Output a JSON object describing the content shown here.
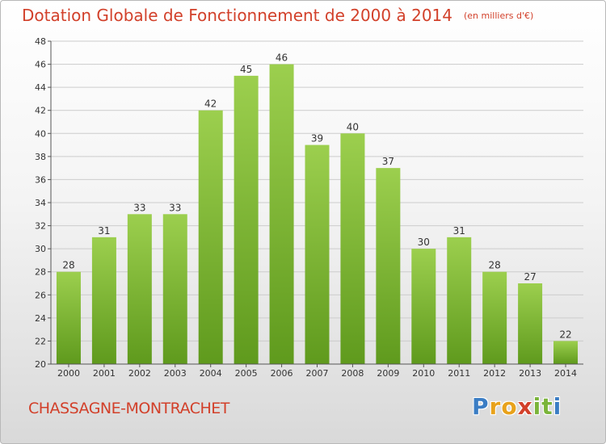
{
  "title": "Dotation Globale de Fonctionnement de 2000 à 2014",
  "unit": "(en milliers d'€)",
  "commune": "CHASSAGNE-MONTRACHET",
  "logo": {
    "text": "Proxiti",
    "letters": [
      {
        "ch": "P",
        "color": "#3b7dc4"
      },
      {
        "ch": "r",
        "color": "#e8a21b"
      },
      {
        "ch": "o",
        "color": "#e8a21b"
      },
      {
        "ch": "x",
        "color": "#d2402a"
      },
      {
        "ch": "i",
        "color": "#7ab43a"
      },
      {
        "ch": "t",
        "color": "#7ab43a"
      },
      {
        "ch": "i",
        "color": "#3b7dc4"
      }
    ]
  },
  "colors": {
    "title": "#d2402a",
    "bar_top": "#9ccf4e",
    "bar_bottom": "#5f9a1d",
    "grid": "#cccccc",
    "axis": "#555555"
  },
  "chart_data": {
    "type": "bar",
    "categories": [
      "2000",
      "2001",
      "2002",
      "2003",
      "2004",
      "2005",
      "2006",
      "2007",
      "2008",
      "2009",
      "2010",
      "2011",
      "2012",
      "2013",
      "2014"
    ],
    "values": [
      28,
      31,
      33,
      33,
      42,
      45,
      46,
      39,
      40,
      37,
      30,
      31,
      28,
      27,
      22
    ],
    "ylim": [
      20,
      48
    ],
    "yticks": [
      20,
      22,
      24,
      26,
      28,
      30,
      32,
      34,
      36,
      38,
      40,
      42,
      44,
      46,
      48
    ],
    "grid": true,
    "data_labels": true
  }
}
